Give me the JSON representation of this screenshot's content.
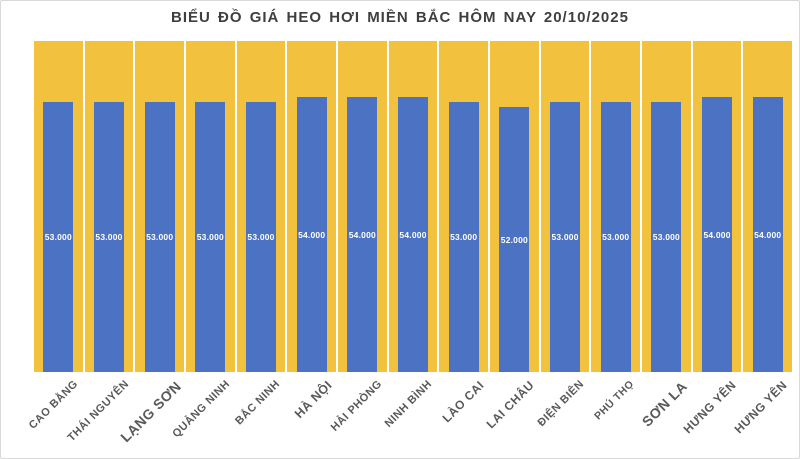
{
  "title": "BIỂU ĐỒ GIÁ HEO HƠI MIỀN BẮC HÔM NAY 20/10/2025",
  "chart_data": {
    "type": "bar",
    "title": "BIỂU ĐỒ GIÁ HEO HƠI MIỀN BẮC HÔM NAY 20/10/2025",
    "categories": [
      "CAO BẰNG",
      "THÁI NGUYÊN",
      "LẠNG SƠN",
      "QUẢNG NINH",
      "BẮC NINH",
      "HÀ NỘI",
      "HẢI PHÒNG",
      "NINH BÌNH",
      "LÀO CAI",
      "LAI CHÂU",
      "ĐIỆN BIÊN",
      "PHÚ THỌ",
      "SƠN LA",
      "HƯNG YÊN",
      "HƯNG YÊN"
    ],
    "values": [
      53000,
      53000,
      53000,
      53000,
      53000,
      54000,
      54000,
      54000,
      53000,
      52000,
      53000,
      53000,
      53000,
      54000,
      54000
    ],
    "value_labels": [
      "53.000",
      "53.000",
      "53.000",
      "53.000",
      "53.000",
      "54.000",
      "54.000",
      "54.000",
      "53.000",
      "52.000",
      "53.000",
      "53.000",
      "53.000",
      "54.000",
      "54.000"
    ],
    "xlabel": "",
    "ylabel": "",
    "ylim": [
      0,
      65000
    ],
    "grid": false,
    "legend": false,
    "value_label_position": "center-of-bar",
    "x_label_rotation_deg": -45,
    "label_font_px": [
      11,
      11,
      14,
      11,
      11,
      12.5,
      11,
      11,
      12,
      12,
      11,
      10.5,
      14,
      12,
      12
    ],
    "colors": {
      "bar": "#4c72c4",
      "plot_background": "#f2c13d",
      "column_separator": "#ffffff",
      "title_text": "#3f3f3f",
      "axis_label_text": "#595959",
      "value_label_text": "#ffffff",
      "chart_border": "#d9d9d9",
      "background": "#ffffff"
    }
  }
}
